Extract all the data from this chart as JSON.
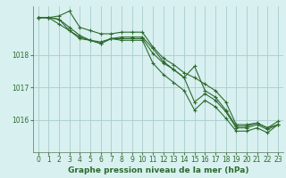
{
  "background_color": "#c8e8e8",
  "plot_bg_color": "#d8f0f0",
  "grid_color": "#aacccc",
  "line_color": "#2d6a2d",
  "marker_color": "#2d6a2d",
  "xlabel": "Graphe pression niveau de la mer (hPa)",
  "xlabel_fontsize": 6.5,
  "tick_fontsize": 5.5,
  "ylim": [
    1015.0,
    1019.5
  ],
  "xlim": [
    -0.5,
    23.5
  ],
  "yticks": [
    1016,
    1017,
    1018
  ],
  "xticks": [
    0,
    1,
    2,
    3,
    4,
    5,
    6,
    7,
    8,
    9,
    10,
    11,
    12,
    13,
    14,
    15,
    16,
    17,
    18,
    19,
    20,
    21,
    22,
    23
  ],
  "series": [
    [
      1019.15,
      1019.15,
      1019.2,
      1019.35,
      1018.85,
      1018.75,
      1018.65,
      1018.65,
      1018.7,
      1018.7,
      1018.7,
      1018.25,
      1017.9,
      1017.7,
      1017.45,
      1017.3,
      1017.1,
      1016.9,
      1016.55,
      1015.85,
      1015.85,
      1015.9,
      1015.75,
      1015.85
    ],
    [
      1019.15,
      1019.15,
      1019.1,
      1018.85,
      1018.6,
      1018.45,
      1018.4,
      1018.5,
      1018.5,
      1018.5,
      1018.5,
      1018.05,
      1017.75,
      1017.55,
      1017.3,
      1016.55,
      1016.8,
      1016.6,
      1016.25,
      1015.75,
      1015.75,
      1015.85,
      1015.7,
      1015.85
    ],
    [
      1019.15,
      1019.15,
      1018.95,
      1018.75,
      1018.55,
      1018.45,
      1018.35,
      1018.5,
      1018.45,
      1018.45,
      1018.45,
      1017.75,
      1017.4,
      1017.15,
      1016.9,
      1016.3,
      1016.6,
      1016.4,
      1016.05,
      1015.65,
      1015.65,
      1015.75,
      1015.6,
      1015.85
    ],
    [
      1019.15,
      1019.15,
      1019.1,
      1018.75,
      1018.5,
      1018.45,
      1018.35,
      1018.5,
      1018.55,
      1018.55,
      1018.55,
      1018.2,
      1017.8,
      1017.55,
      1017.3,
      1017.65,
      1016.9,
      1016.7,
      1016.3,
      1015.8,
      1015.8,
      1015.9,
      1015.75,
      1015.95
    ]
  ]
}
